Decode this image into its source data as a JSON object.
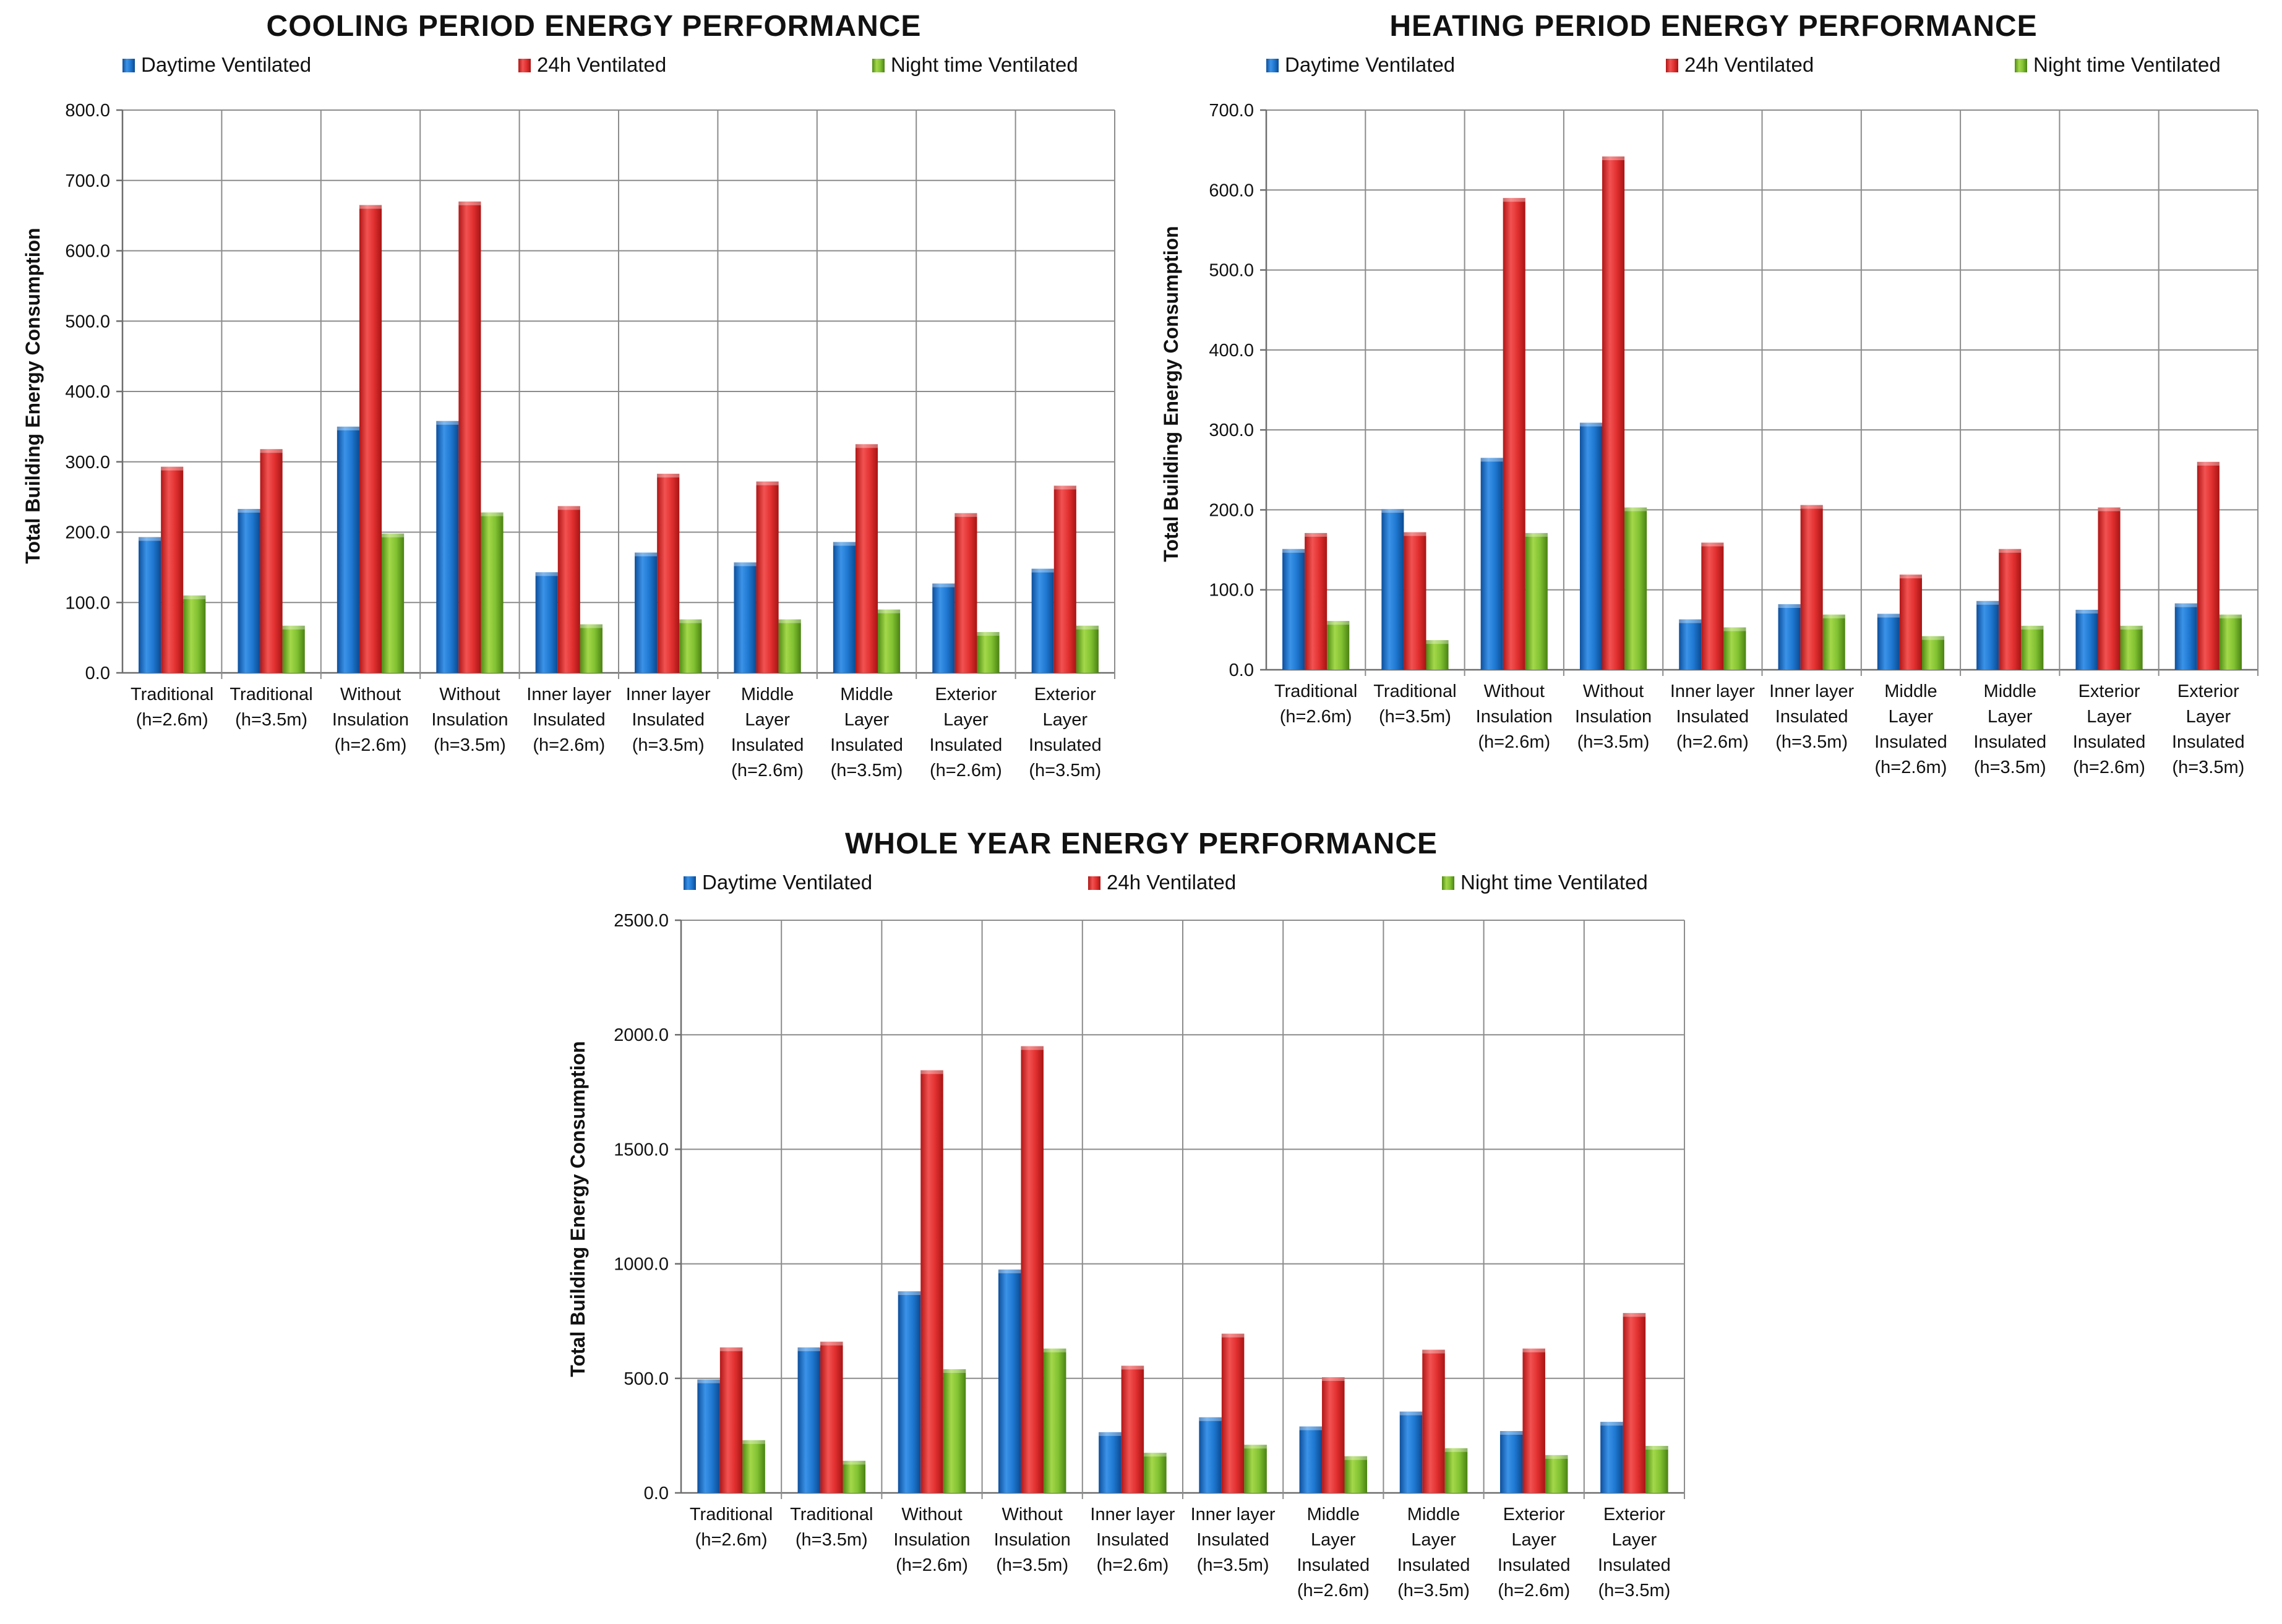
{
  "chart_data": [
    {
      "type": "bar",
      "title": "COOLING PERIOD ENERGY PERFORMANCE",
      "ylabel": "Total Building Energy Consumption",
      "xlabel": "",
      "ylim": [
        0,
        800
      ],
      "yticks": [
        "0.0",
        "100.0",
        "200.0",
        "300.0",
        "400.0",
        "500.0",
        "600.0",
        "700.0",
        "800.0"
      ],
      "grid": true,
      "legend_position": "top",
      "categories": [
        [
          "Traditional",
          "(h=2.6m)"
        ],
        [
          "Traditional",
          "(h=3.5m)"
        ],
        [
          "Without",
          "Insulation",
          "(h=2.6m)"
        ],
        [
          "Without",
          "Insulation",
          "(h=3.5m)"
        ],
        [
          "Inner layer",
          "Insulated",
          "(h=2.6m)"
        ],
        [
          "Inner layer",
          "Insulated",
          "(h=3.5m)"
        ],
        [
          "Middle",
          "Layer",
          "Insulated",
          "(h=2.6m)"
        ],
        [
          "Middle",
          "Layer",
          "Insulated",
          "(h=3.5m)"
        ],
        [
          "Exterior",
          "Layer",
          "Insulated",
          "(h=2.6m)"
        ],
        [
          "Exterior",
          "Layer",
          "Insulated",
          "(h=3.5m)"
        ]
      ],
      "series": [
        {
          "name": "Daytime Ventilated",
          "color": "#1c6fc9",
          "values": [
            193,
            233,
            350,
            358,
            143,
            171,
            157,
            186,
            127,
            148
          ]
        },
        {
          "name": "24h Ventilated",
          "color": "#e02a2a",
          "values": [
            293,
            318,
            665,
            670,
            237,
            283,
            272,
            325,
            227,
            266
          ]
        },
        {
          "name": "Night time Ventilated",
          "color": "#78b82a",
          "values": [
            110,
            67,
            198,
            228,
            69,
            76,
            76,
            90,
            58,
            67
          ]
        }
      ]
    },
    {
      "type": "bar",
      "title": "HEATING PERIOD ENERGY PERFORMANCE",
      "ylabel": "Total Building Energy Consumption",
      "xlabel": "",
      "ylim": [
        0,
        700
      ],
      "yticks": [
        "0.0",
        "100.0",
        "200.0",
        "300.0",
        "400.0",
        "500.0",
        "600.0",
        "700.0"
      ],
      "grid": true,
      "legend_position": "top",
      "categories": [
        [
          "Traditional",
          "(h=2.6m)"
        ],
        [
          "Traditional",
          "(h=3.5m)"
        ],
        [
          "Without",
          "Insulation",
          "(h=2.6m)"
        ],
        [
          "Without",
          "Insulation",
          "(h=3.5m)"
        ],
        [
          "Inner layer",
          "Insulated",
          "(h=2.6m)"
        ],
        [
          "Inner layer",
          "Insulated",
          "(h=3.5m)"
        ],
        [
          "Middle",
          "Layer",
          "Insulated",
          "(h=2.6m)"
        ],
        [
          "Middle",
          "Layer",
          "Insulated",
          "(h=3.5m)"
        ],
        [
          "Exterior",
          "Layer",
          "Insulated",
          "(h=2.6m)"
        ],
        [
          "Exterior",
          "Layer",
          "Insulated",
          "(h=3.5m)"
        ]
      ],
      "series": [
        {
          "name": "Daytime Ventilated",
          "color": "#1c6fc9",
          "values": [
            151,
            201,
            265,
            309,
            63,
            82,
            70,
            86,
            75,
            83
          ]
        },
        {
          "name": "24h Ventilated",
          "color": "#e02a2a",
          "values": [
            171,
            172,
            590,
            642,
            159,
            206,
            119,
            151,
            203,
            260
          ]
        },
        {
          "name": "Night time Ventilated",
          "color": "#78b82a",
          "values": [
            61,
            37,
            171,
            203,
            53,
            69,
            42,
            55,
            55,
            69
          ]
        }
      ]
    },
    {
      "type": "bar",
      "title": "WHOLE YEAR ENERGY PERFORMANCE",
      "ylabel": "Total Building Energy Consumption",
      "xlabel": "",
      "ylim": [
        0,
        2500
      ],
      "yticks": [
        "0.0",
        "500.0",
        "1000.0",
        "1500.0",
        "2000.0",
        "2500.0"
      ],
      "grid": true,
      "legend_position": "top",
      "categories": [
        [
          "Traditional",
          "(h=2.6m)"
        ],
        [
          "Traditional",
          "(h=3.5m)"
        ],
        [
          "Without",
          "Insulation",
          "(h=2.6m)"
        ],
        [
          "Without",
          "Insulation",
          "(h=3.5m)"
        ],
        [
          "Inner layer",
          "Insulated",
          "(h=2.6m)"
        ],
        [
          "Inner layer",
          "Insulated",
          "(h=3.5m)"
        ],
        [
          "Middle",
          "Layer",
          "Insulated",
          "(h=2.6m)"
        ],
        [
          "Middle",
          "Layer",
          "Insulated",
          "(h=3.5m)"
        ],
        [
          "Exterior",
          "Layer",
          "Insulated",
          "(h=2.6m)"
        ],
        [
          "Exterior",
          "Layer",
          "Insulated",
          "(h=3.5m)"
        ]
      ],
      "series": [
        {
          "name": "Daytime Ventilated",
          "color": "#1c6fc9",
          "values": [
            495,
            635,
            880,
            975,
            265,
            330,
            290,
            355,
            270,
            310
          ]
        },
        {
          "name": "24h Ventilated",
          "color": "#e02a2a",
          "values": [
            635,
            660,
            1845,
            1950,
            555,
            695,
            505,
            625,
            630,
            785
          ]
        },
        {
          "name": "Night time Ventilated",
          "color": "#78b82a",
          "values": [
            230,
            140,
            540,
            630,
            175,
            210,
            160,
            195,
            165,
            205
          ]
        }
      ]
    }
  ]
}
